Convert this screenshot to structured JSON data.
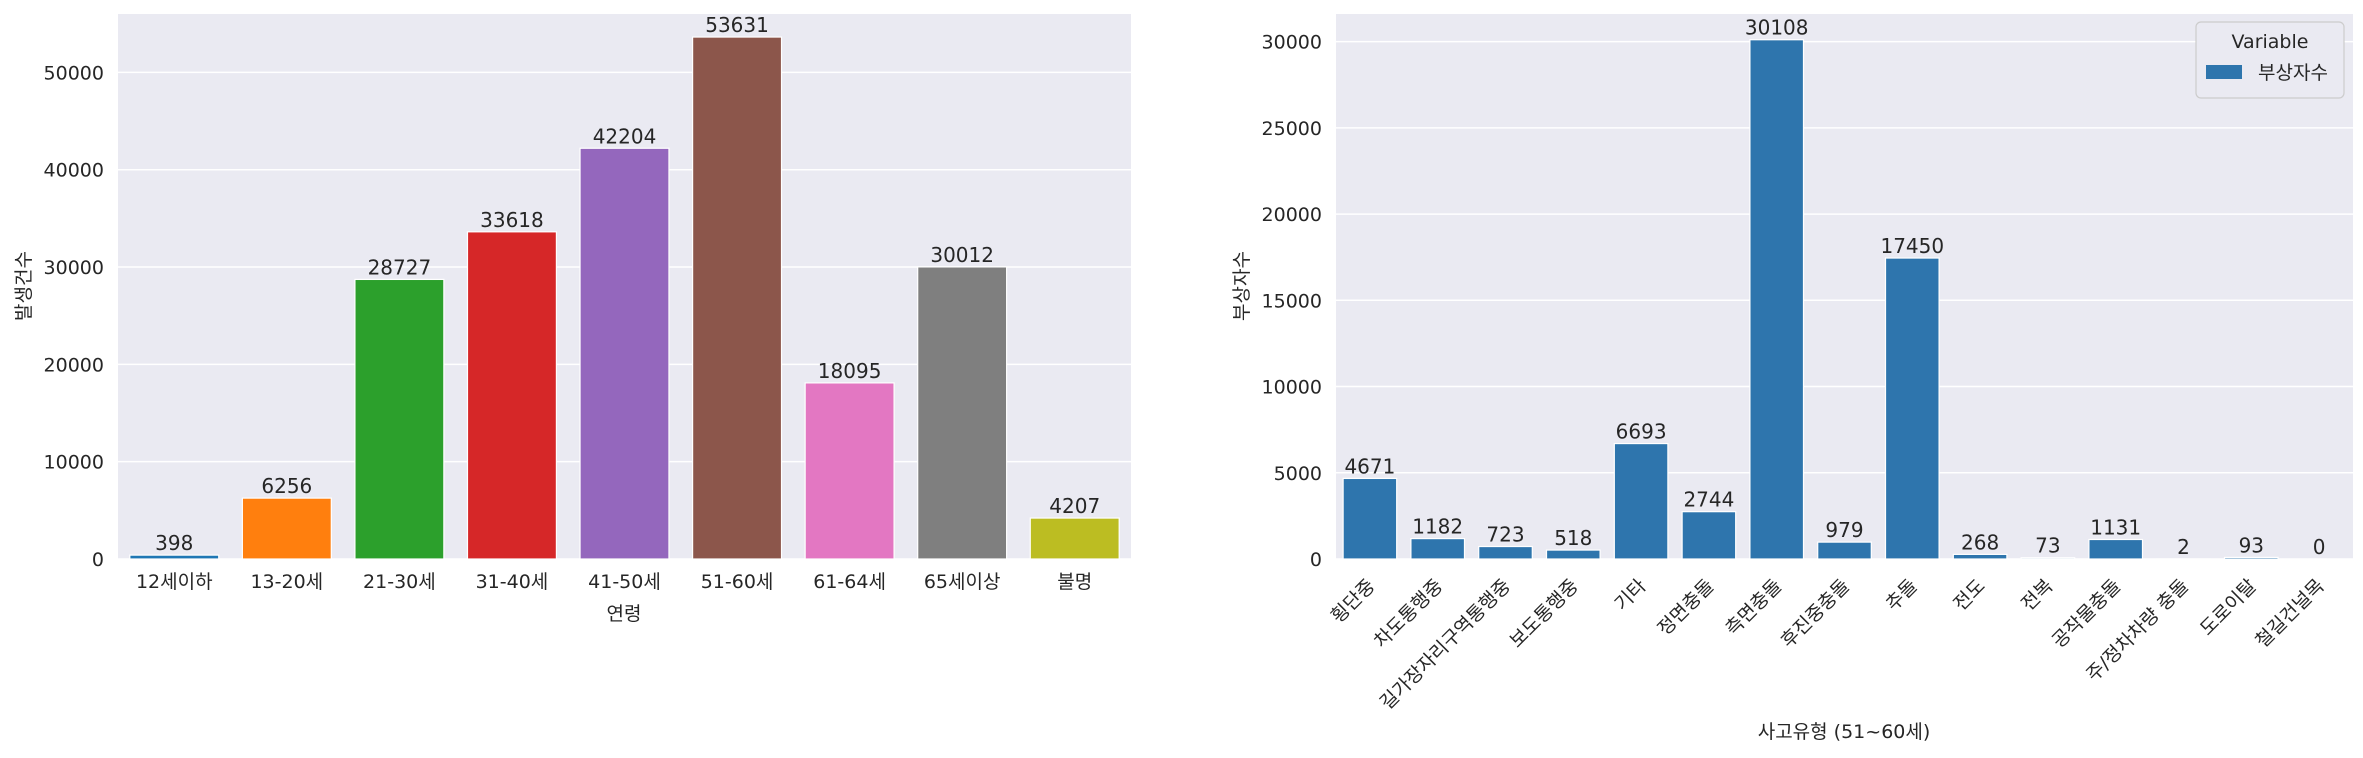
{
  "chart_data": [
    {
      "type": "bar",
      "title": "",
      "xlabel": "연령",
      "ylabel": "발생건수",
      "categories": [
        "12세이하",
        "13-20세",
        "21-30세",
        "31-40세",
        "41-50세",
        "51-60세",
        "61-64세",
        "65세이상",
        "불명"
      ],
      "values": [
        398,
        6256,
        28727,
        33618,
        42204,
        53631,
        18095,
        30012,
        4207
      ],
      "colors": [
        "#1f77b4",
        "#ff7f0e",
        "#2ca02c",
        "#d62728",
        "#9467bd",
        "#8c564b",
        "#e377c2",
        "#7f7f7f",
        "#bcbd22"
      ],
      "ylim": [
        0,
        56000
      ],
      "yticks": [
        0,
        10000,
        20000,
        30000,
        40000,
        50000
      ],
      "grid": true,
      "data_labels": true
    },
    {
      "type": "bar",
      "title": "",
      "xlabel": "사고유형 (51~60세)",
      "ylabel": "부상자수",
      "categories": [
        "횡단중",
        "차도통행중",
        "길가장자리구역통행중",
        "보도통행중",
        "기타",
        "정면충돌",
        "측면충돌",
        "후진중충돌",
        "추돌",
        "전도",
        "전복",
        "공작물충돌",
        "주/정차차량 충돌",
        "도로이탈",
        "철길건널목"
      ],
      "series": [
        {
          "name": "부상자수",
          "values": [
            4671,
            1182,
            723,
            518,
            6693,
            2744,
            30108,
            979,
            17450,
            268,
            73,
            1131,
            2,
            93,
            0
          ]
        }
      ],
      "color": "#2e75ad",
      "ylim": [
        0,
        31600
      ],
      "yticks": [
        0,
        5000,
        10000,
        15000,
        20000,
        25000,
        30000
      ],
      "legend": {
        "title": "Variable",
        "placement": "top-right"
      },
      "grid": true,
      "data_labels": true
    }
  ]
}
